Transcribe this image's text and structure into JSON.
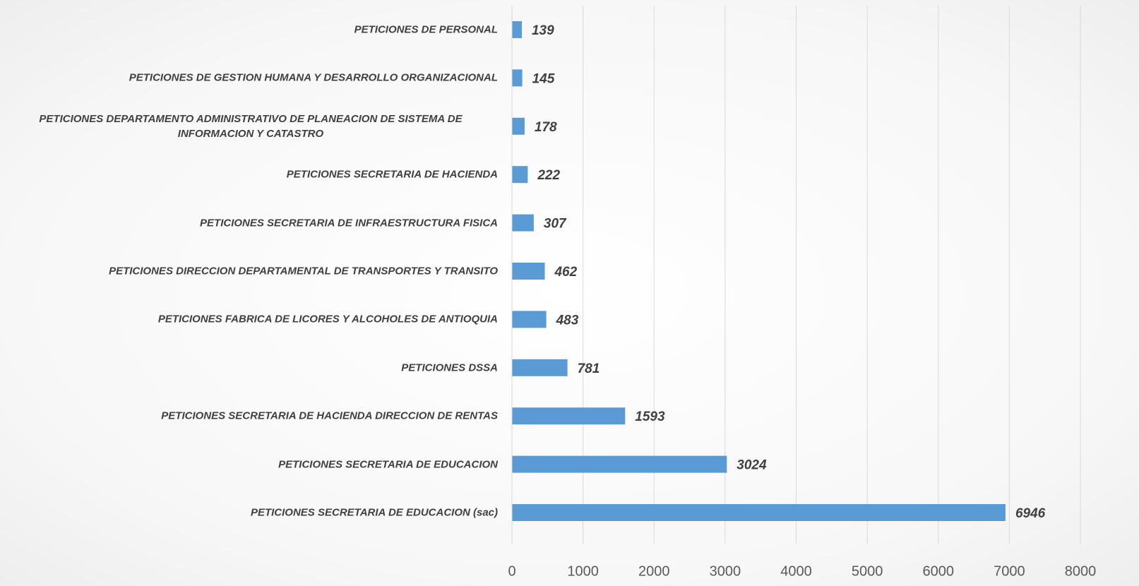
{
  "chart_data": {
    "type": "hbar",
    "categories": [
      "PETICIONES DE PERSONAL",
      "PETICIONES DE GESTION HUMANA Y DESARROLLO ORGANIZACIONAL",
      "PETICIONES DEPARTAMENTO ADMINISTRATIVO DE PLANEACION DE SISTEMA DE INFORMACION Y CATASTRO",
      "PETICIONES SECRETARIA DE HACIENDA",
      "PETICIONES SECRETARIA DE INFRAESTRUCTURA FISICA",
      "PETICIONES DIRECCION DEPARTAMENTAL DE TRANSPORTES Y TRANSITO",
      "PETICIONES FABRICA DE LICORES Y ALCOHOLES DE ANTIOQUIA",
      "PETICIONES DSSA",
      "PETICIONES SECRETARIA DE HACIENDA DIRECCION DE RENTAS",
      "PETICIONES SECRETARIA DE EDUCACION",
      "PETICIONES SECRETARIA DE EDUCACION (sac)"
    ],
    "values": [
      139,
      145,
      178,
      222,
      307,
      462,
      483,
      781,
      1593,
      3024,
      6946
    ],
    "color": "#5b9bd5",
    "xlim": [
      0,
      8000
    ],
    "xticks": [
      0,
      1000,
      2000,
      3000,
      4000,
      5000,
      6000,
      7000,
      8000
    ],
    "grid": true
  }
}
